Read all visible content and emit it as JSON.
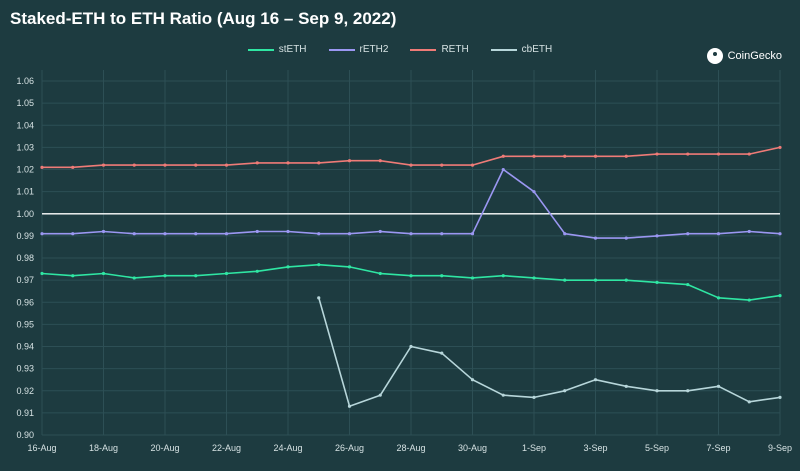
{
  "header": {
    "title": "Staked-ETH to ETH Ratio (Aug 16 – Sep 9, 2022)"
  },
  "brand": {
    "name": "CoinGecko",
    "icon": "gecko-logo-icon"
  },
  "chart_data": {
    "type": "line",
    "title": "Staked-ETH to ETH Ratio (Aug 16 – Sep 9, 2022)",
    "xlabel": "",
    "ylabel": "",
    "x": [
      "16-Aug",
      "17-Aug",
      "18-Aug",
      "19-Aug",
      "20-Aug",
      "21-Aug",
      "22-Aug",
      "23-Aug",
      "24-Aug",
      "25-Aug",
      "26-Aug",
      "27-Aug",
      "28-Aug",
      "29-Aug",
      "30-Aug",
      "31-Aug",
      "1-Sep",
      "2-Sep",
      "3-Sep",
      "4-Sep",
      "5-Sep",
      "6-Sep",
      "7-Sep",
      "8-Sep",
      "9-Sep"
    ],
    "x_tick_labels": [
      "16-Aug",
      "18-Aug",
      "20-Aug",
      "22-Aug",
      "24-Aug",
      "26-Aug",
      "28-Aug",
      "30-Aug",
      "1-Sep",
      "3-Sep",
      "5-Sep",
      "7-Sep",
      "9-Sep"
    ],
    "y_ticks": [
      0.9,
      0.91,
      0.92,
      0.93,
      0.94,
      0.95,
      0.96,
      0.97,
      0.98,
      0.99,
      1.0,
      1.01,
      1.02,
      1.03,
      1.04,
      1.05,
      1.06
    ],
    "ylim": [
      0.9,
      1.065
    ],
    "reference_line": 1.0,
    "grid": true,
    "legend_position": "top-center",
    "series": [
      {
        "name": "stETH",
        "color": "#2fe6a3",
        "values": [
          0.973,
          0.972,
          0.973,
          0.971,
          0.972,
          0.972,
          0.973,
          0.974,
          0.976,
          0.977,
          0.976,
          0.973,
          0.972,
          0.972,
          0.971,
          0.972,
          0.971,
          0.97,
          0.97,
          0.97,
          0.969,
          0.968,
          0.962,
          0.961,
          0.963
        ]
      },
      {
        "name": "rETH2",
        "color": "#9b97f2",
        "values": [
          0.991,
          0.991,
          0.992,
          0.991,
          0.991,
          0.991,
          0.991,
          0.992,
          0.992,
          0.991,
          0.991,
          0.992,
          0.991,
          0.991,
          0.991,
          1.02,
          1.01,
          0.991,
          0.989,
          0.989,
          0.99,
          0.991,
          0.991,
          0.992,
          0.991
        ]
      },
      {
        "name": "RETH",
        "color": "#ef7b77",
        "values": [
          1.021,
          1.021,
          1.022,
          1.022,
          1.022,
          1.022,
          1.022,
          1.023,
          1.023,
          1.023,
          1.024,
          1.024,
          1.022,
          1.022,
          1.022,
          1.026,
          1.026,
          1.026,
          1.026,
          1.026,
          1.027,
          1.027,
          1.027,
          1.027,
          1.03
        ]
      },
      {
        "name": "cbETH",
        "color": "#b7d6da",
        "values": [
          null,
          null,
          null,
          null,
          null,
          null,
          null,
          null,
          null,
          0.962,
          0.913,
          0.918,
          0.94,
          0.937,
          0.925,
          0.918,
          0.917,
          0.92,
          0.925,
          0.922,
          0.92,
          0.92,
          0.922,
          0.915,
          0.917
        ]
      }
    ]
  }
}
